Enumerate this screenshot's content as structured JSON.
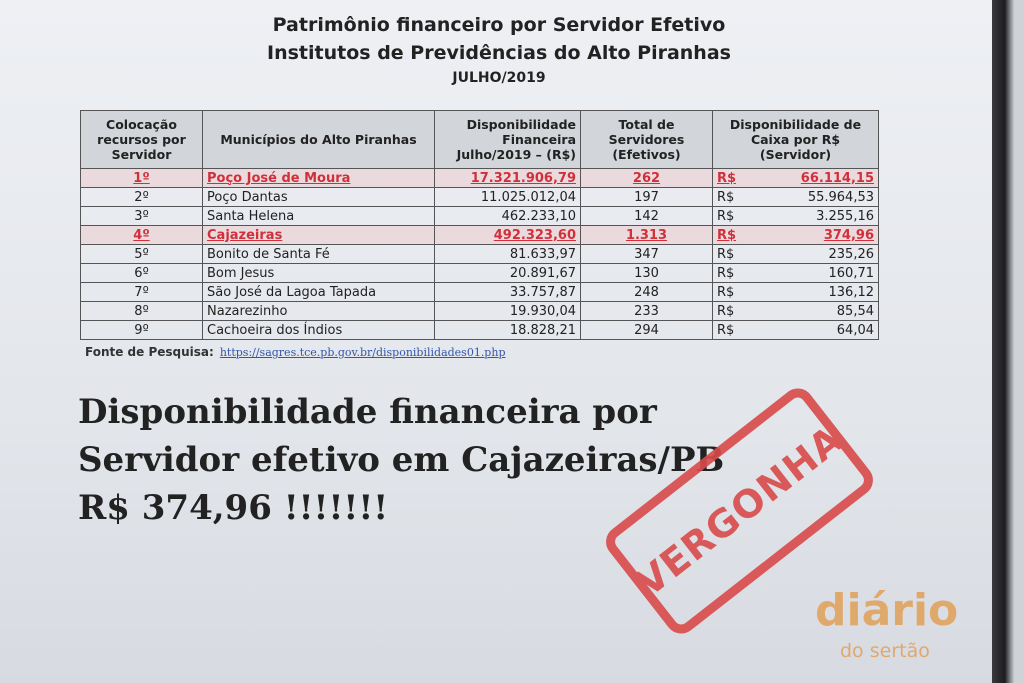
{
  "document": {
    "title_line1": "Patrimônio financeiro por Servidor Efetivo",
    "title_line2": "Institutos de Previdências do Alto Piranhas",
    "title_line3": "JULHO/2019",
    "table": {
      "headers": [
        "Colocação recursos por Servidor",
        "Municípios do Alto Piranhas",
        "Disponibilidade Financeira Julho/2019 – (R$)",
        "Total de Servidores (Efetivos)",
        "Disponibilidade de Caixa por R$ (Servidor)"
      ],
      "rows": [
        {
          "rank": "1º",
          "municipio": "Poço José de Moura",
          "financeira": "17.321.906,79",
          "servidores": "262",
          "currency": "R$",
          "por_servidor": "66.114,15",
          "highlight": true
        },
        {
          "rank": "2º",
          "municipio": "Poço Dantas",
          "financeira": "11.025.012,04",
          "servidores": "197",
          "currency": "R$",
          "por_servidor": "55.964,53",
          "highlight": false
        },
        {
          "rank": "3º",
          "municipio": "Santa Helena",
          "financeira": "462.233,10",
          "servidores": "142",
          "currency": "R$",
          "por_servidor": "3.255,16",
          "highlight": false
        },
        {
          "rank": "4º",
          "municipio": "Cajazeiras",
          "financeira": "492.323,60",
          "servidores": "1.313",
          "currency": "R$",
          "por_servidor": "374,96",
          "highlight": true
        },
        {
          "rank": "5º",
          "municipio": "Bonito de Santa Fé",
          "financeira": "81.633,97",
          "servidores": "347",
          "currency": "R$",
          "por_servidor": "235,26",
          "highlight": false
        },
        {
          "rank": "6º",
          "municipio": "Bom Jesus",
          "financeira": "20.891,67",
          "servidores": "130",
          "currency": "R$",
          "por_servidor": "160,71",
          "highlight": false
        },
        {
          "rank": "7º",
          "municipio": "São José da Lagoa Tapada",
          "financeira": "33.757,87",
          "servidores": "248",
          "currency": "R$",
          "por_servidor": "136,12",
          "highlight": false
        },
        {
          "rank": "8º",
          "municipio": "Nazarezinho",
          "financeira": "19.930,04",
          "servidores": "233",
          "currency": "R$",
          "por_servidor": "85,54",
          "highlight": false
        },
        {
          "rank": "9º",
          "municipio": "Cachoeira dos Índios",
          "financeira": "18.828,21",
          "servidores": "294",
          "currency": "R$",
          "por_servidor": "64,04",
          "highlight": false
        }
      ]
    },
    "source_label": "Fonte de Pesquisa:",
    "source_link": "https://sagres.tce.pb.gov.br/disponibilidades01.php",
    "statement_line1": "Disponibilidade financeira por",
    "statement_line2": "Servidor efetivo em Cajazeiras/PB",
    "statement_line3": "R$ 374,96 !!!!!!!",
    "stamp": "VERGONHA",
    "highlight_color": "#d0303a"
  },
  "watermark": {
    "line1": "diário",
    "line2": "do sertão"
  }
}
